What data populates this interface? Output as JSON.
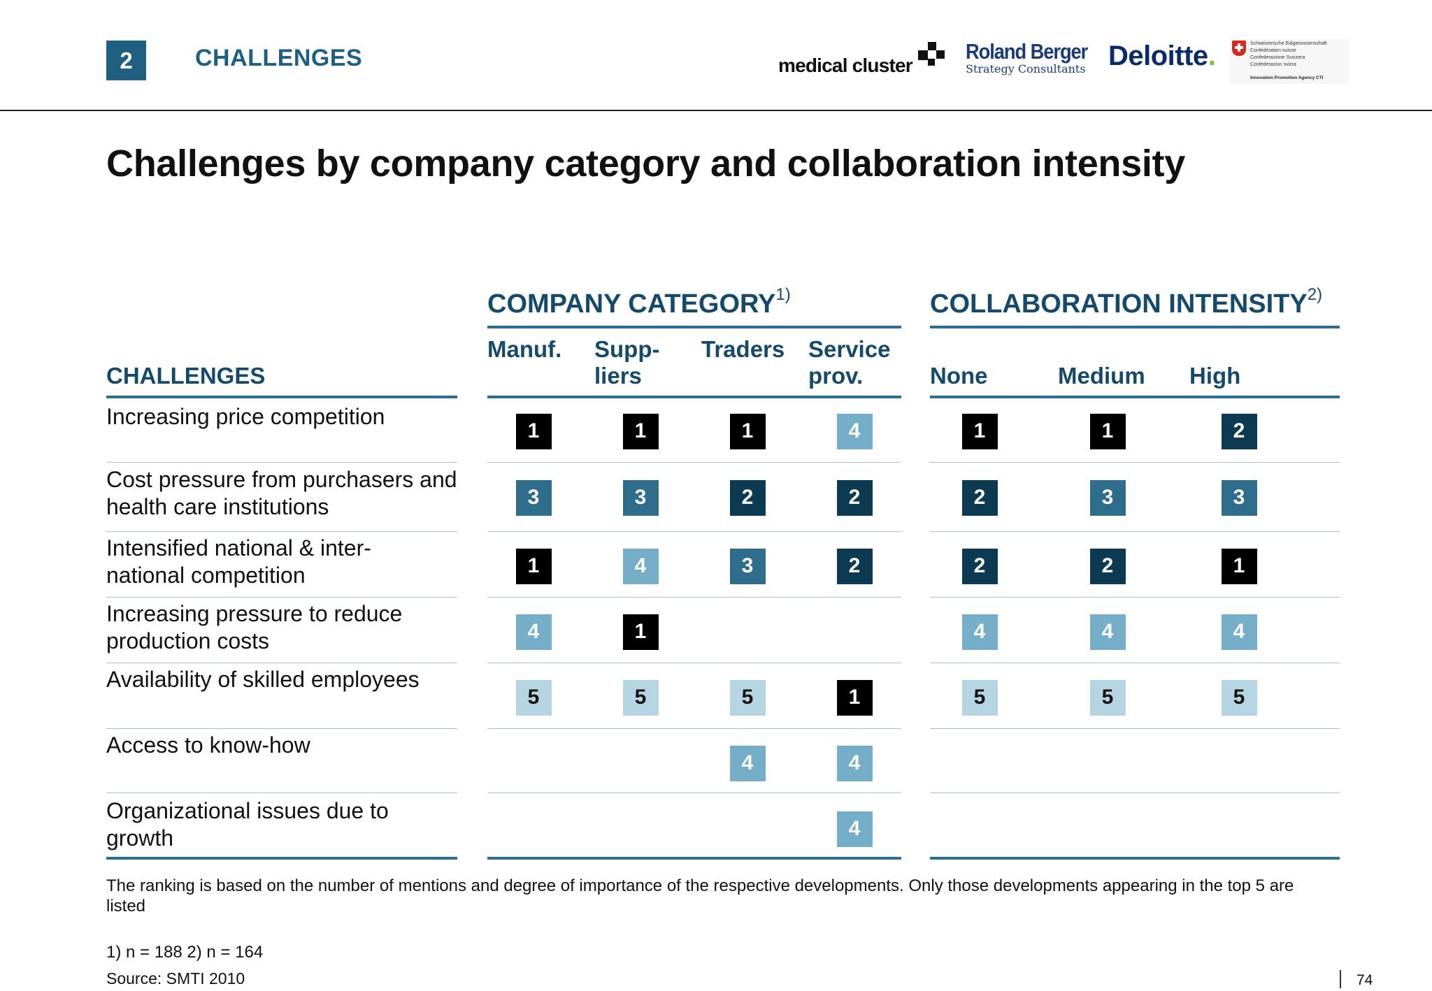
{
  "header": {
    "section_number": "2",
    "section_title": "CHALLENGES"
  },
  "logos": {
    "medical_cluster": "medical cluster",
    "roland_berger_name": "Roland Berger",
    "roland_berger_sub": "Strategy Consultants",
    "deloitte": "Deloitte",
    "deloitte_dot": ".",
    "swiss_lines": [
      "Schweizerische Eidgenossenschaft",
      "Confédération suisse",
      "Confederazione Svizzera",
      "Confederaziun svizra"
    ],
    "swiss_agency": "Innovation Promotion Agency CTI"
  },
  "page_title": "Challenges by company category and collaboration intensity",
  "table": {
    "challenges_header": "CHALLENGES",
    "company_category": {
      "label": "COMPANY CATEGORY",
      "note": "1)"
    },
    "collaboration_intensity": {
      "label": "COLLABORATION INTENSITY",
      "note": "2)"
    },
    "company_columns": [
      {
        "line1": "",
        "line2": "Manuf."
      },
      {
        "line1": "Supp-",
        "line2": "liers"
      },
      {
        "line1": "",
        "line2": "Traders"
      },
      {
        "line1": "Service",
        "line2": "prov."
      }
    ],
    "collab_columns": [
      {
        "line2": "None"
      },
      {
        "line2": "Medium"
      },
      {
        "line2": "High"
      }
    ],
    "rows": [
      {
        "label": "Increasing price competition",
        "company": [
          "1",
          "1",
          "1",
          "4"
        ],
        "collab": [
          "1",
          "1",
          "2"
        ]
      },
      {
        "label": "Cost pressure from purchasers and health care institutions",
        "company": [
          "3",
          "3",
          "2",
          "2"
        ],
        "collab": [
          "2",
          "3",
          "3"
        ]
      },
      {
        "label": "Intensified national & inter-national competition",
        "company": [
          "1",
          "4",
          "3",
          "2"
        ],
        "collab": [
          "2",
          "2",
          "1"
        ]
      },
      {
        "label": "Increasing pressure to reduce production costs",
        "company": [
          "4",
          "1",
          "",
          ""
        ],
        "collab": [
          "4",
          "4",
          "4"
        ]
      },
      {
        "label": "Availability of skilled employees",
        "company": [
          "5",
          "5",
          "5",
          "1"
        ],
        "collab": [
          "5",
          "5",
          "5"
        ]
      },
      {
        "label": "Access to know-how",
        "company": [
          "",
          "",
          "4",
          "4"
        ],
        "collab": [
          "",
          "",
          ""
        ]
      },
      {
        "label": "Organizational issues due to growth",
        "company": [
          "",
          "",
          "",
          "4"
        ],
        "collab": [
          "",
          "",
          ""
        ]
      }
    ]
  },
  "footnote": "The ranking is based on the number of mentions and degree of importance of the respective developments. Only those developments appearing in the top 5 are listed",
  "sample_size": "1) n = 188   2) n = 164",
  "source": "Source:  SMTI 2010",
  "page_number": "74",
  "colors": {
    "rank_1": "#000000",
    "rank_2": "#0b3a52",
    "rank_3": "#2f6d8c",
    "rank_4": "#74aec8",
    "rank_5": "#b5d5e3",
    "accent": "#1f5f80"
  }
}
